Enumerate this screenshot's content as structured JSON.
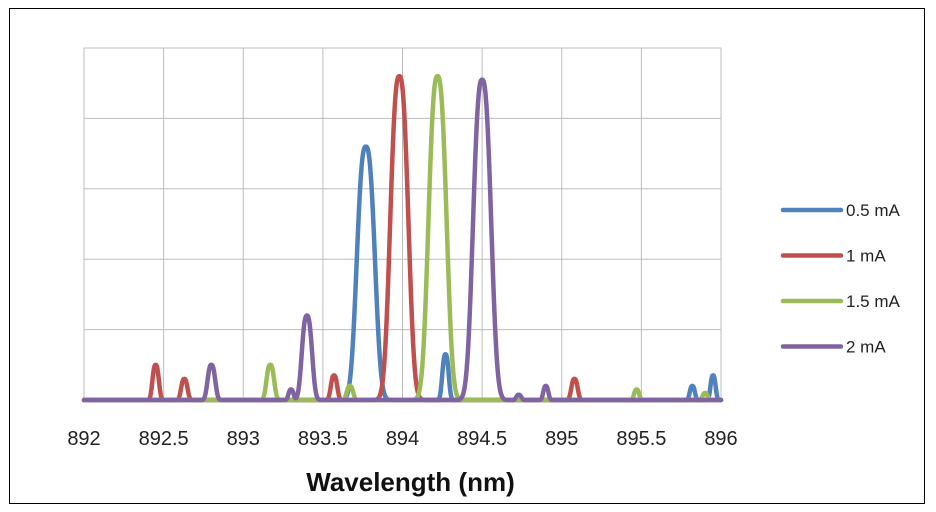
{
  "chart_data": {
    "type": "line",
    "title": "",
    "xlabel": "Wavelength (nm)",
    "ylabel": "",
    "xlim": [
      892,
      896
    ],
    "ylim": [
      0,
      100
    ],
    "x_ticks": [
      "892",
      "892.5",
      "893",
      "893.5",
      "894",
      "894.5",
      "895",
      "895.5",
      "896"
    ],
    "y_gridlines": [
      20,
      40,
      60,
      80,
      100
    ],
    "grid": true,
    "legend_position": "right",
    "series": [
      {
        "name": "0.5 mA",
        "color": "#4F81BD",
        "peaks": [
          {
            "x": 893.77,
            "y": 72,
            "w": 0.07
          },
          {
            "x": 894.27,
            "y": 13,
            "w": 0.025
          },
          {
            "x": 895.82,
            "y": 4,
            "w": 0.02
          },
          {
            "x": 895.95,
            "y": 7,
            "w": 0.02
          }
        ]
      },
      {
        "name": "1 mA",
        "color": "#C0504D",
        "peaks": [
          {
            "x": 892.45,
            "y": 10,
            "w": 0.025
          },
          {
            "x": 892.63,
            "y": 6,
            "w": 0.025
          },
          {
            "x": 893.57,
            "y": 7,
            "w": 0.025
          },
          {
            "x": 893.98,
            "y": 92,
            "w": 0.07
          },
          {
            "x": 895.08,
            "y": 6,
            "w": 0.025
          }
        ]
      },
      {
        "name": "1.5 mA",
        "color": "#9BBB59",
        "peaks": [
          {
            "x": 893.17,
            "y": 10,
            "w": 0.03
          },
          {
            "x": 893.67,
            "y": 4,
            "w": 0.025
          },
          {
            "x": 894.22,
            "y": 92,
            "w": 0.07
          },
          {
            "x": 895.47,
            "y": 3,
            "w": 0.02
          },
          {
            "x": 895.9,
            "y": 2,
            "w": 0.02
          }
        ]
      },
      {
        "name": "2 mA",
        "color": "#8064A2",
        "peaks": [
          {
            "x": 892.8,
            "y": 10,
            "w": 0.03
          },
          {
            "x": 893.3,
            "y": 3,
            "w": 0.02
          },
          {
            "x": 893.4,
            "y": 24,
            "w": 0.04
          },
          {
            "x": 894.5,
            "y": 91,
            "w": 0.07
          },
          {
            "x": 894.73,
            "y": 1.5,
            "w": 0.02
          },
          {
            "x": 894.9,
            "y": 4,
            "w": 0.02
          }
        ]
      }
    ]
  }
}
